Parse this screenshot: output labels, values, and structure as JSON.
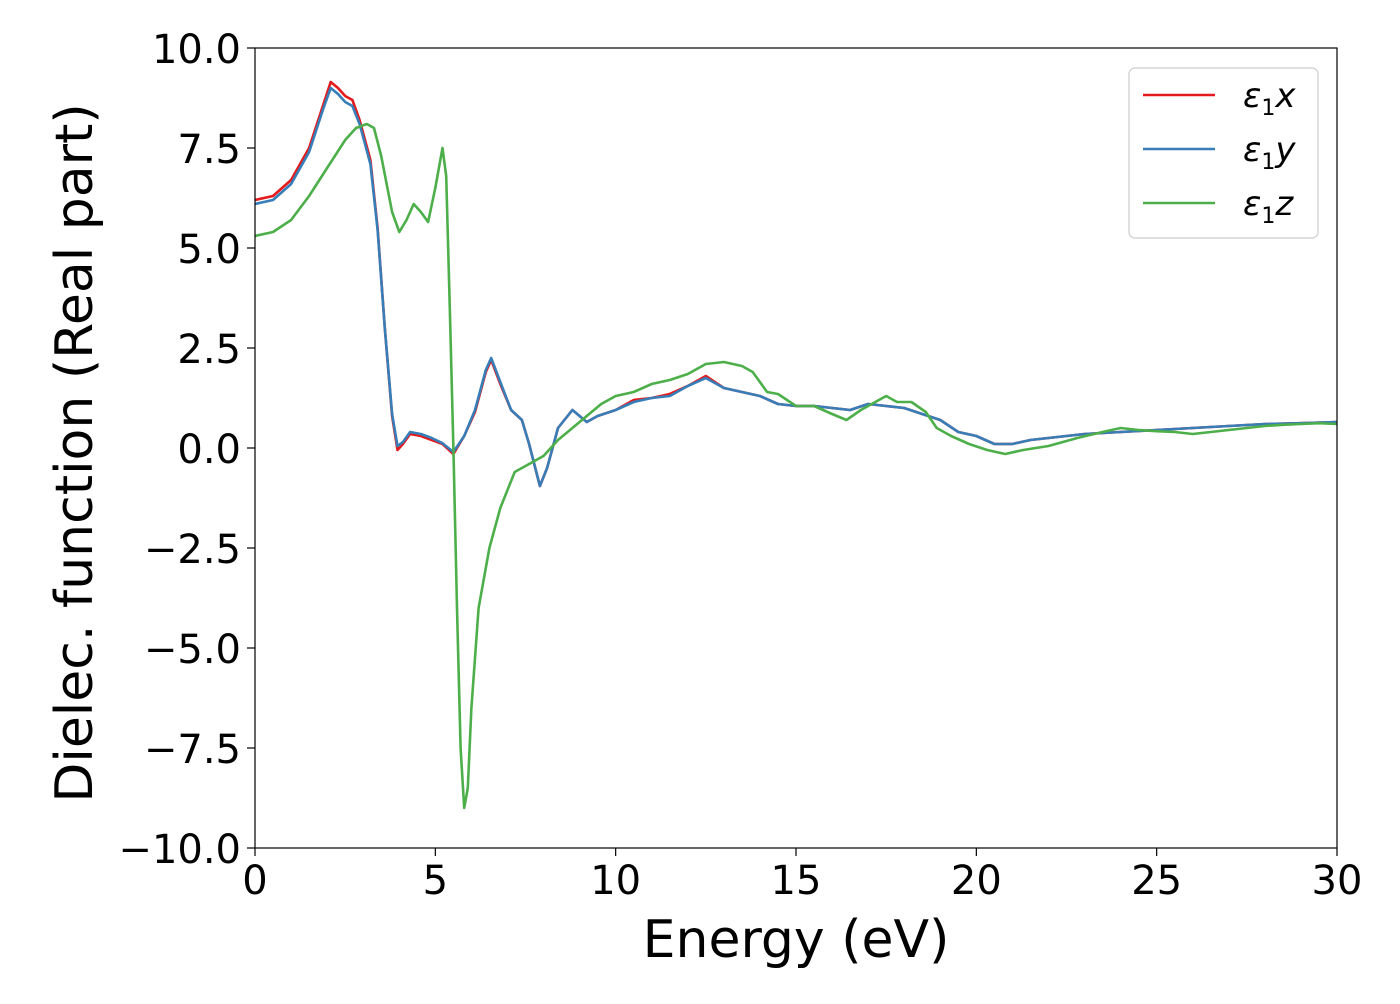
{
  "chart_data": {
    "type": "line",
    "title": "",
    "xlabel": "Energy (eV)",
    "ylabel": "Dielec. function (Real part)",
    "xlim": [
      0,
      30
    ],
    "ylim": [
      -10,
      10
    ],
    "xticks": [
      0,
      5,
      10,
      15,
      20,
      25,
      30
    ],
    "xtick_labels": [
      "0",
      "5",
      "10",
      "15",
      "20",
      "25",
      "30"
    ],
    "yticks": [
      -10,
      -7.5,
      -5,
      -2.5,
      0,
      2.5,
      5,
      7.5,
      10
    ],
    "ytick_labels": [
      "−10.0",
      "−7.5",
      "−5.0",
      "−2.5",
      "0.0",
      "2.5",
      "5.0",
      "7.5",
      "10.0"
    ],
    "grid": false,
    "legend_position": "top-right",
    "series": [
      {
        "name": "ε1x",
        "legend": {
          "symbol": "ε",
          "sub": "1",
          "axis": "x"
        },
        "color": "#e41a1c",
        "points": [
          [
            0,
            6.2
          ],
          [
            0.5,
            6.3
          ],
          [
            1.0,
            6.7
          ],
          [
            1.5,
            7.5
          ],
          [
            1.9,
            8.6
          ],
          [
            2.1,
            9.15
          ],
          [
            2.3,
            9.0
          ],
          [
            2.5,
            8.8
          ],
          [
            2.7,
            8.7
          ],
          [
            2.9,
            8.2
          ],
          [
            3.2,
            7.2
          ],
          [
            3.4,
            5.5
          ],
          [
            3.6,
            3.0
          ],
          [
            3.8,
            0.8
          ],
          [
            3.95,
            -0.05
          ],
          [
            4.1,
            0.1
          ],
          [
            4.3,
            0.35
          ],
          [
            4.6,
            0.3
          ],
          [
            4.9,
            0.2
          ],
          [
            5.2,
            0.1
          ],
          [
            5.5,
            -0.15
          ],
          [
            5.8,
            0.3
          ],
          [
            6.1,
            0.9
          ],
          [
            6.4,
            1.9
          ],
          [
            6.55,
            2.2
          ],
          [
            6.8,
            1.6
          ],
          [
            7.1,
            0.95
          ],
          [
            7.4,
            0.7
          ],
          [
            7.6,
            0.1
          ],
          [
            7.9,
            -0.95
          ],
          [
            8.1,
            -0.5
          ],
          [
            8.4,
            0.5
          ],
          [
            8.8,
            0.95
          ],
          [
            9.2,
            0.65
          ],
          [
            9.5,
            0.8
          ],
          [
            10.0,
            0.95
          ],
          [
            10.5,
            1.2
          ],
          [
            11.0,
            1.25
          ],
          [
            11.5,
            1.35
          ],
          [
            12.0,
            1.55
          ],
          [
            12.5,
            1.8
          ],
          [
            13.0,
            1.5
          ],
          [
            13.5,
            1.4
          ],
          [
            14.0,
            1.3
          ],
          [
            14.5,
            1.1
          ],
          [
            15.0,
            1.05
          ],
          [
            15.5,
            1.05
          ],
          [
            16.0,
            1.0
          ],
          [
            16.5,
            0.95
          ],
          [
            17.0,
            1.1
          ],
          [
            17.5,
            1.05
          ],
          [
            18.0,
            1.0
          ],
          [
            18.5,
            0.85
          ],
          [
            19.0,
            0.7
          ],
          [
            19.5,
            0.4
          ],
          [
            20.0,
            0.3
          ],
          [
            20.5,
            0.1
          ],
          [
            21.0,
            0.1
          ],
          [
            21.5,
            0.2
          ],
          [
            22.0,
            0.25
          ],
          [
            23.0,
            0.35
          ],
          [
            24.0,
            0.4
          ],
          [
            25.0,
            0.45
          ],
          [
            26.0,
            0.5
          ],
          [
            27.0,
            0.55
          ],
          [
            28.0,
            0.6
          ],
          [
            29.0,
            0.62
          ],
          [
            30.0,
            0.65
          ]
        ]
      },
      {
        "name": "ε1y",
        "legend": {
          "symbol": "ε",
          "sub": "1",
          "axis": "y"
        },
        "color": "#377eb8",
        "points": [
          [
            0,
            6.1
          ],
          [
            0.5,
            6.2
          ],
          [
            1.0,
            6.6
          ],
          [
            1.5,
            7.4
          ],
          [
            1.9,
            8.5
          ],
          [
            2.1,
            9.0
          ],
          [
            2.3,
            8.85
          ],
          [
            2.5,
            8.65
          ],
          [
            2.7,
            8.55
          ],
          [
            2.9,
            8.1
          ],
          [
            3.2,
            7.1
          ],
          [
            3.4,
            5.45
          ],
          [
            3.6,
            3.0
          ],
          [
            3.8,
            0.85
          ],
          [
            3.95,
            0.05
          ],
          [
            4.1,
            0.15
          ],
          [
            4.3,
            0.4
          ],
          [
            4.6,
            0.35
          ],
          [
            4.9,
            0.25
          ],
          [
            5.2,
            0.12
          ],
          [
            5.5,
            -0.1
          ],
          [
            5.8,
            0.3
          ],
          [
            6.1,
            0.95
          ],
          [
            6.4,
            1.95
          ],
          [
            6.55,
            2.25
          ],
          [
            6.8,
            1.65
          ],
          [
            7.1,
            0.95
          ],
          [
            7.4,
            0.7
          ],
          [
            7.6,
            0.1
          ],
          [
            7.9,
            -0.95
          ],
          [
            8.1,
            -0.5
          ],
          [
            8.4,
            0.5
          ],
          [
            8.8,
            0.95
          ],
          [
            9.2,
            0.65
          ],
          [
            9.5,
            0.8
          ],
          [
            10.0,
            0.95
          ],
          [
            10.5,
            1.15
          ],
          [
            11.0,
            1.25
          ],
          [
            11.5,
            1.3
          ],
          [
            12.0,
            1.55
          ],
          [
            12.5,
            1.75
          ],
          [
            13.0,
            1.5
          ],
          [
            13.5,
            1.4
          ],
          [
            14.0,
            1.3
          ],
          [
            14.5,
            1.1
          ],
          [
            15.0,
            1.05
          ],
          [
            15.5,
            1.05
          ],
          [
            16.0,
            1.0
          ],
          [
            16.5,
            0.95
          ],
          [
            17.0,
            1.1
          ],
          [
            17.5,
            1.05
          ],
          [
            18.0,
            1.0
          ],
          [
            18.5,
            0.85
          ],
          [
            19.0,
            0.7
          ],
          [
            19.5,
            0.4
          ],
          [
            20.0,
            0.3
          ],
          [
            20.5,
            0.1
          ],
          [
            21.0,
            0.1
          ],
          [
            21.5,
            0.2
          ],
          [
            22.0,
            0.25
          ],
          [
            23.0,
            0.35
          ],
          [
            24.0,
            0.4
          ],
          [
            25.0,
            0.45
          ],
          [
            26.0,
            0.5
          ],
          [
            27.0,
            0.55
          ],
          [
            28.0,
            0.6
          ],
          [
            29.0,
            0.62
          ],
          [
            30.0,
            0.65
          ]
        ]
      },
      {
        "name": "ε1z",
        "legend": {
          "symbol": "ε",
          "sub": "1",
          "axis": "z"
        },
        "color": "#4daf4a",
        "points": [
          [
            0,
            5.3
          ],
          [
            0.5,
            5.4
          ],
          [
            1.0,
            5.7
          ],
          [
            1.5,
            6.3
          ],
          [
            2.0,
            7.0
          ],
          [
            2.5,
            7.7
          ],
          [
            2.8,
            8.0
          ],
          [
            3.1,
            8.1
          ],
          [
            3.3,
            8.0
          ],
          [
            3.5,
            7.3
          ],
          [
            3.8,
            5.9
          ],
          [
            4.0,
            5.4
          ],
          [
            4.2,
            5.7
          ],
          [
            4.4,
            6.1
          ],
          [
            4.6,
            5.9
          ],
          [
            4.8,
            5.65
          ],
          [
            5.0,
            6.5
          ],
          [
            5.2,
            7.5
          ],
          [
            5.3,
            6.8
          ],
          [
            5.4,
            3.5
          ],
          [
            5.5,
            0.0
          ],
          [
            5.6,
            -4.0
          ],
          [
            5.7,
            -7.5
          ],
          [
            5.8,
            -9.0
          ],
          [
            5.9,
            -8.5
          ],
          [
            6.0,
            -6.5
          ],
          [
            6.2,
            -4.0
          ],
          [
            6.5,
            -2.5
          ],
          [
            6.8,
            -1.5
          ],
          [
            7.2,
            -0.6
          ],
          [
            7.6,
            -0.4
          ],
          [
            8.0,
            -0.2
          ],
          [
            8.4,
            0.2
          ],
          [
            8.8,
            0.5
          ],
          [
            9.2,
            0.8
          ],
          [
            9.6,
            1.1
          ],
          [
            10.0,
            1.3
          ],
          [
            10.5,
            1.4
          ],
          [
            11.0,
            1.6
          ],
          [
            11.5,
            1.7
          ],
          [
            12.0,
            1.85
          ],
          [
            12.5,
            2.1
          ],
          [
            13.0,
            2.15
          ],
          [
            13.5,
            2.05
          ],
          [
            13.8,
            1.9
          ],
          [
            14.2,
            1.4
          ],
          [
            14.5,
            1.35
          ],
          [
            15.0,
            1.05
          ],
          [
            15.5,
            1.05
          ],
          [
            16.0,
            0.85
          ],
          [
            16.4,
            0.7
          ],
          [
            16.8,
            0.95
          ],
          [
            17.2,
            1.15
          ],
          [
            17.5,
            1.3
          ],
          [
            17.8,
            1.15
          ],
          [
            18.2,
            1.15
          ],
          [
            18.6,
            0.9
          ],
          [
            18.9,
            0.5
          ],
          [
            19.3,
            0.3
          ],
          [
            19.8,
            0.1
          ],
          [
            20.3,
            -0.05
          ],
          [
            20.8,
            -0.15
          ],
          [
            21.3,
            -0.05
          ],
          [
            22.0,
            0.05
          ],
          [
            22.8,
            0.25
          ],
          [
            23.5,
            0.4
          ],
          [
            24.0,
            0.5
          ],
          [
            24.5,
            0.45
          ],
          [
            25.0,
            0.42
          ],
          [
            25.5,
            0.4
          ],
          [
            26.0,
            0.35
          ],
          [
            26.5,
            0.4
          ],
          [
            27.0,
            0.45
          ],
          [
            27.5,
            0.5
          ],
          [
            28.0,
            0.55
          ],
          [
            28.5,
            0.58
          ],
          [
            29.0,
            0.6
          ],
          [
            29.5,
            0.62
          ],
          [
            30.0,
            0.6
          ]
        ]
      }
    ]
  }
}
